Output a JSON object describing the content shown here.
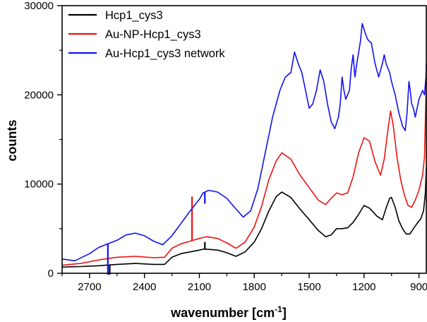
{
  "chart_data": {
    "type": "line",
    "xlabel": "wavenumber [cm",
    "xlabel_sup": "-1",
    "xlabel_close": "]",
    "ylabel": "counts",
    "xlim": [
      2850,
      860
    ],
    "ylim": [
      0,
      30000
    ],
    "x_reversed": true,
    "x_ticks": [
      2700,
      2400,
      2100,
      1800,
      1500,
      1200,
      900
    ],
    "x_tick_labels": [
      "2700",
      "2400",
      "2100",
      "1800",
      "1500",
      "1200",
      "900"
    ],
    "y_ticks": [
      0,
      10000,
      20000,
      30000
    ],
    "y_tick_labels": [
      "0",
      "10000",
      "20000",
      "30000"
    ],
    "grid": false,
    "legend_position": "top-left",
    "series": [
      {
        "name": "Hcp1_cys3",
        "color": "#000000",
        "points": [
          [
            2850,
            700
          ],
          [
            2750,
            750
          ],
          [
            2650,
            850
          ],
          [
            2550,
            1000
          ],
          [
            2450,
            1100
          ],
          [
            2350,
            1000
          ],
          [
            2290,
            1000
          ],
          [
            2250,
            1800
          ],
          [
            2200,
            2200
          ],
          [
            2150,
            2400
          ],
          [
            2100,
            2600
          ],
          [
            2080,
            2700
          ],
          [
            2060,
            2700
          ],
          [
            2000,
            2600
          ],
          [
            1950,
            2300
          ],
          [
            1900,
            1900
          ],
          [
            1850,
            2400
          ],
          [
            1800,
            3500
          ],
          [
            1760,
            5000
          ],
          [
            1720,
            7000
          ],
          [
            1680,
            8600
          ],
          [
            1650,
            9100
          ],
          [
            1600,
            8500
          ],
          [
            1550,
            7200
          ],
          [
            1500,
            6000
          ],
          [
            1450,
            4800
          ],
          [
            1410,
            4100
          ],
          [
            1380,
            4300
          ],
          [
            1350,
            5000
          ],
          [
            1320,
            5000
          ],
          [
            1290,
            5100
          ],
          [
            1260,
            5700
          ],
          [
            1230,
            6600
          ],
          [
            1200,
            7600
          ],
          [
            1170,
            7300
          ],
          [
            1130,
            6400
          ],
          [
            1100,
            6000
          ],
          [
            1080,
            7300
          ],
          [
            1060,
            8400
          ],
          [
            1050,
            8500
          ],
          [
            1030,
            7400
          ],
          [
            1010,
            5900
          ],
          [
            990,
            5000
          ],
          [
            970,
            4400
          ],
          [
            950,
            4400
          ],
          [
            930,
            5000
          ],
          [
            910,
            5600
          ],
          [
            890,
            6100
          ],
          [
            875,
            7000
          ],
          [
            865,
            9000
          ],
          [
            860,
            11800
          ]
        ],
        "spikes": [
          [
            2590,
            -500
          ],
          [
            2070,
            3500
          ]
        ]
      },
      {
        "name": "Au-NP-Hcp1_cys3",
        "color": "#ee1111",
        "points": [
          [
            2850,
            900
          ],
          [
            2750,
            1100
          ],
          [
            2650,
            1500
          ],
          [
            2550,
            1800
          ],
          [
            2450,
            1900
          ],
          [
            2350,
            1750
          ],
          [
            2290,
            1800
          ],
          [
            2250,
            2800
          ],
          [
            2200,
            3300
          ],
          [
            2150,
            3600
          ],
          [
            2100,
            3900
          ],
          [
            2080,
            4000
          ],
          [
            2060,
            4100
          ],
          [
            2000,
            3900
          ],
          [
            1950,
            3400
          ],
          [
            1900,
            2800
          ],
          [
            1850,
            3500
          ],
          [
            1800,
            5200
          ],
          [
            1760,
            7500
          ],
          [
            1720,
            10500
          ],
          [
            1680,
            12600
          ],
          [
            1650,
            13500
          ],
          [
            1600,
            12800
          ],
          [
            1550,
            11000
          ],
          [
            1500,
            9600
          ],
          [
            1450,
            8200
          ],
          [
            1410,
            7700
          ],
          [
            1380,
            8400
          ],
          [
            1350,
            9000
          ],
          [
            1320,
            8800
          ],
          [
            1290,
            9000
          ],
          [
            1260,
            10800
          ],
          [
            1230,
            13500
          ],
          [
            1200,
            15200
          ],
          [
            1170,
            14800
          ],
          [
            1140,
            12500
          ],
          [
            1110,
            11000
          ],
          [
            1090,
            12800
          ],
          [
            1070,
            16000
          ],
          [
            1055,
            18200
          ],
          [
            1040,
            16500
          ],
          [
            1020,
            13000
          ],
          [
            1000,
            10500
          ],
          [
            980,
            8800
          ],
          [
            960,
            7600
          ],
          [
            940,
            7400
          ],
          [
            920,
            8200
          ],
          [
            900,
            9300
          ],
          [
            880,
            11000
          ],
          [
            870,
            13000
          ],
          [
            860,
            21500
          ]
        ],
        "spikes": [
          [
            2140,
            8600
          ]
        ]
      },
      {
        "name": "Au-Hcp1_cys3 network",
        "color": "#1111ee",
        "points": [
          [
            2850,
            1600
          ],
          [
            2780,
            1400
          ],
          [
            2700,
            2200
          ],
          [
            2650,
            2900
          ],
          [
            2600,
            3300
          ],
          [
            2550,
            3700
          ],
          [
            2500,
            4300
          ],
          [
            2450,
            4500
          ],
          [
            2400,
            4200
          ],
          [
            2350,
            3600
          ],
          [
            2300,
            3200
          ],
          [
            2250,
            4200
          ],
          [
            2200,
            5600
          ],
          [
            2150,
            7000
          ],
          [
            2100,
            8300
          ],
          [
            2080,
            9000
          ],
          [
            2050,
            9300
          ],
          [
            2000,
            9100
          ],
          [
            1950,
            8400
          ],
          [
            1900,
            7200
          ],
          [
            1860,
            6300
          ],
          [
            1820,
            7000
          ],
          [
            1780,
            9500
          ],
          [
            1740,
            13500
          ],
          [
            1700,
            17500
          ],
          [
            1660,
            20500
          ],
          [
            1630,
            22000
          ],
          [
            1600,
            22500
          ],
          [
            1580,
            24800
          ],
          [
            1560,
            23500
          ],
          [
            1540,
            22500
          ],
          [
            1520,
            20500
          ],
          [
            1500,
            18500
          ],
          [
            1480,
            19000
          ],
          [
            1460,
            20500
          ],
          [
            1440,
            22800
          ],
          [
            1420,
            21500
          ],
          [
            1400,
            19000
          ],
          [
            1380,
            17000
          ],
          [
            1360,
            16200
          ],
          [
            1340,
            17500
          ],
          [
            1330,
            19000
          ],
          [
            1320,
            22000
          ],
          [
            1310,
            20500
          ],
          [
            1300,
            19500
          ],
          [
            1280,
            20500
          ],
          [
            1270,
            23000
          ],
          [
            1260,
            24500
          ],
          [
            1250,
            22000
          ],
          [
            1240,
            23500
          ],
          [
            1220,
            26000
          ],
          [
            1210,
            28000
          ],
          [
            1195,
            27000
          ],
          [
            1180,
            26200
          ],
          [
            1160,
            25800
          ],
          [
            1140,
            23500
          ],
          [
            1120,
            22000
          ],
          [
            1100,
            23500
          ],
          [
            1090,
            24500
          ],
          [
            1080,
            23500
          ],
          [
            1060,
            22500
          ],
          [
            1050,
            21500
          ],
          [
            1030,
            20000
          ],
          [
            1010,
            18000
          ],
          [
            990,
            16500
          ],
          [
            975,
            16000
          ],
          [
            965,
            18000
          ],
          [
            955,
            21500
          ],
          [
            948,
            20500
          ],
          [
            940,
            19000
          ],
          [
            930,
            18500
          ],
          [
            920,
            17500
          ],
          [
            910,
            18500
          ],
          [
            900,
            19500
          ],
          [
            890,
            20000
          ],
          [
            880,
            20500
          ],
          [
            870,
            20000
          ],
          [
            862,
            22000
          ],
          [
            860,
            23500
          ]
        ],
        "spikes": [
          [
            2600,
            -300
          ],
          [
            2070,
            7800
          ]
        ]
      }
    ]
  }
}
